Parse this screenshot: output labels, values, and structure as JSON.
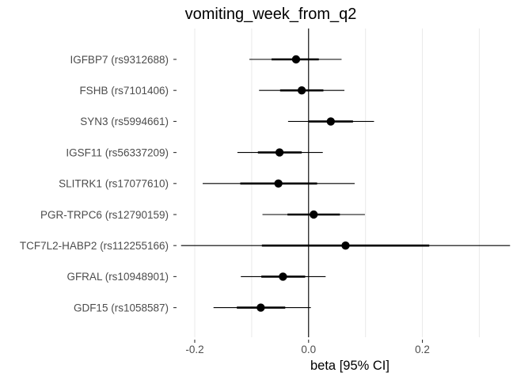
{
  "chart_data": {
    "type": "forest",
    "title": "vomiting_week_from_q2",
    "xlabel": "beta [95% CI]",
    "ylabel": "",
    "xlim": [
      -0.225,
      0.355
    ],
    "x_ticks": [
      -0.2,
      0.0,
      0.2
    ],
    "x_tick_labels": [
      "-0.2",
      "0.0",
      "0.2"
    ],
    "reference_line": 0,
    "grid": true,
    "rows": [
      {
        "label": "IGFBP7 (rs9312688)",
        "beta": -0.022,
        "ci_inner": [
          -0.065,
          0.018
        ],
        "ci_outer": [
          -0.104,
          0.058
        ]
      },
      {
        "label": "FSHB (rs7101406)",
        "beta": -0.012,
        "ci_inner": [
          -0.05,
          0.026
        ],
        "ci_outer": [
          -0.087,
          0.063
        ]
      },
      {
        "label": "SYN3 (rs5994661)",
        "beta": 0.039,
        "ci_inner": [
          0.0,
          0.078
        ],
        "ci_outer": [
          -0.036,
          0.115
        ]
      },
      {
        "label": "IGSF11 (rs56337209)",
        "beta": -0.051,
        "ci_inner": [
          -0.089,
          -0.012
        ],
        "ci_outer": [
          -0.125,
          0.025
        ]
      },
      {
        "label": "SLITRK1 (rs17077610)",
        "beta": -0.053,
        "ci_inner": [
          -0.12,
          0.015
        ],
        "ci_outer": [
          -0.186,
          0.081
        ]
      },
      {
        "label": "PGR-TRPC6 (rs12790159)",
        "beta": 0.009,
        "ci_inner": [
          -0.037,
          0.055
        ],
        "ci_outer": [
          -0.081,
          0.099
        ]
      },
      {
        "label": "TCF7L2-HABP2 (rs112255166)",
        "beta": 0.065,
        "ci_inner": [
          -0.082,
          0.212
        ],
        "ci_outer": [
          -0.224,
          0.354
        ]
      },
      {
        "label": "GFRAL (rs10948901)",
        "beta": -0.045,
        "ci_inner": [
          -0.083,
          -0.006
        ],
        "ci_outer": [
          -0.119,
          0.03
        ]
      },
      {
        "label": "GDF15 (rs1058587)",
        "beta": -0.084,
        "ci_inner": [
          -0.126,
          -0.041
        ],
        "ci_outer": [
          -0.167,
          0.004
        ]
      }
    ]
  }
}
